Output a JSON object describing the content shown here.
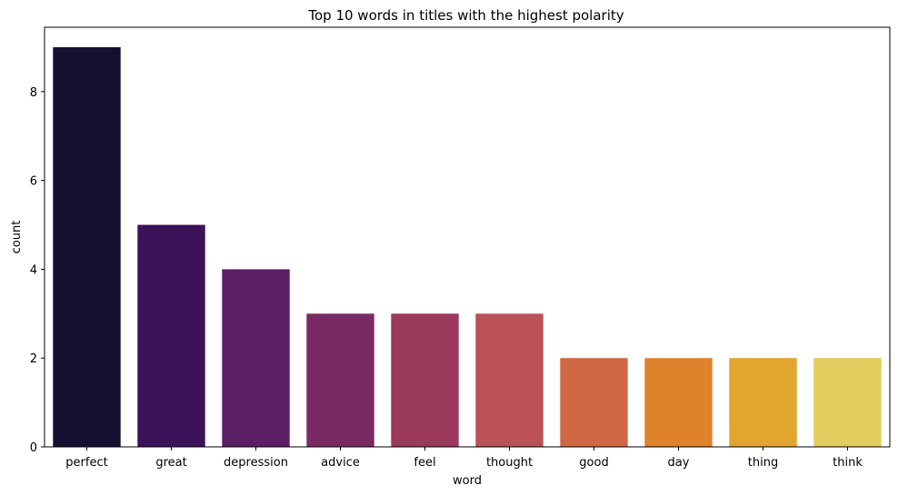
{
  "chart_data": {
    "type": "bar",
    "title": "Top 10 words in titles with the highest polarity",
    "xlabel": "word",
    "ylabel": "count",
    "categories": [
      "perfect",
      "great",
      "depression",
      "advice",
      "feel",
      "thought",
      "good",
      "day",
      "thing",
      "think"
    ],
    "values": [
      9,
      5,
      4,
      3,
      3,
      3,
      2,
      2,
      2,
      2
    ],
    "colors": [
      "#160f30",
      "#3c1259",
      "#5a1f65",
      "#7a2a63",
      "#9b3a5d",
      "#bb5257",
      "#d06846",
      "#de822b",
      "#e1a630",
      "#e2cd5e"
    ],
    "ylim": [
      0,
      9.45
    ],
    "yticks": [
      0,
      2,
      4,
      6,
      8
    ],
    "grid": false,
    "legend": "none"
  }
}
